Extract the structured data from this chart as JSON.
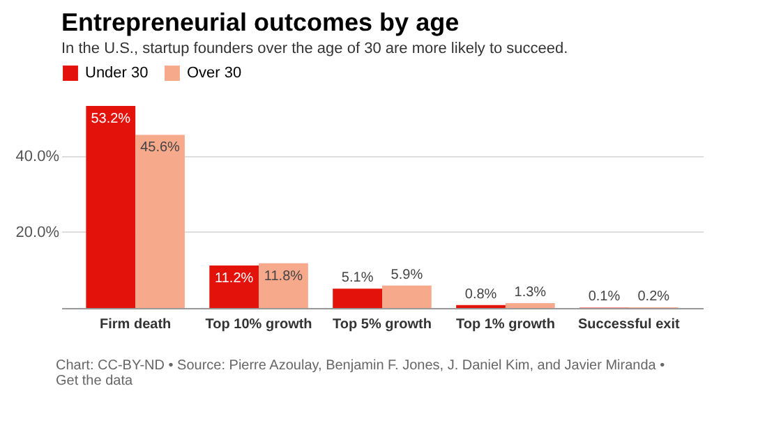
{
  "chart_data": {
    "type": "bar",
    "title": "Entrepreneurial outcomes by age",
    "subtitle": "In the U.S., startup founders over the age of 30 are more likely to succeed.",
    "categories": [
      "Firm death",
      "Top 10% growth",
      "Top 5% growth",
      "Top 1% growth",
      "Successful exit"
    ],
    "series": [
      {
        "name": "Under 30",
        "color": "#e3120b",
        "values": [
          53.2,
          11.2,
          5.1,
          0.8,
          0.1
        ],
        "value_labels": [
          "53.2%",
          "11.2%",
          "5.1%",
          "0.8%",
          "0.1%"
        ]
      },
      {
        "name": "Over 30",
        "color": "#f7a98b",
        "values": [
          45.6,
          11.8,
          5.9,
          1.3,
          0.2
        ],
        "value_labels": [
          "45.6%",
          "11.8%",
          "5.9%",
          "1.3%",
          "0.2%"
        ]
      }
    ],
    "ylim": [
      0,
      53.2
    ],
    "yticks": [
      {
        "value": 0,
        "label": null
      },
      {
        "value": 20,
        "label": "20.0%"
      },
      {
        "value": 40,
        "label": "40.0%"
      }
    ],
    "grid": "y",
    "legend": "top left",
    "annotations": [
      "Chart: CC-BY-ND • Source: Pierre Azoulay, Benjamin F. Jones, J. Daniel Kim, and Javier Miranda • Get the data"
    ]
  }
}
